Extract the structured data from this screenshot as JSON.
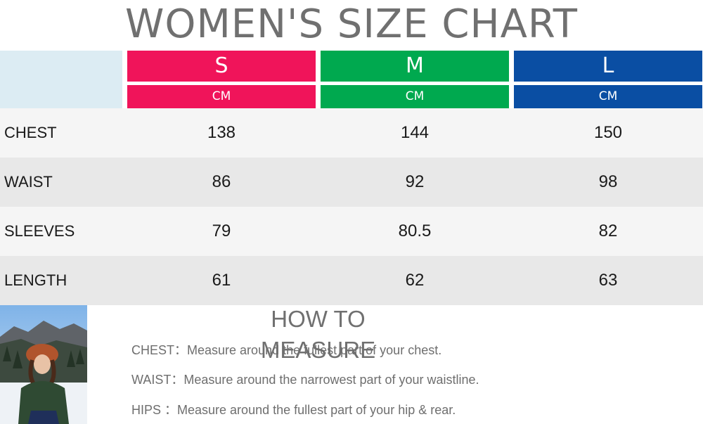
{
  "title": "WOMEN'S SIZE CHART",
  "colors": {
    "s": "#f0145a",
    "m": "#00a94f",
    "l": "#0a4ea3",
    "row_light": "#f5f5f5",
    "row_dark": "#e8e8e8"
  },
  "sizes": [
    {
      "label": "S",
      "unit": "CM"
    },
    {
      "label": "M",
      "unit": "CM"
    },
    {
      "label": "L",
      "unit": "CM"
    }
  ],
  "rows": [
    {
      "label": "CHEST",
      "values": [
        "138",
        "144",
        "150"
      ]
    },
    {
      "label": "WAIST",
      "values": [
        "86",
        "92",
        "98"
      ]
    },
    {
      "label": "SLEEVES",
      "values": [
        "79",
        "80.5",
        "82"
      ]
    },
    {
      "label": "LENGTH",
      "values": [
        "61",
        "62",
        "63"
      ]
    }
  ],
  "how_to_measure": {
    "title": "HOW TO MEASURE",
    "items": [
      {
        "key": "CHEST：",
        "text": "Measure around the fullest part of your chest."
      },
      {
        "key": "WAIST：",
        "text": "Measure around the narrowest part of your waistline."
      },
      {
        "key": "HIPS ：",
        "text": "Measure around the fullest part of your hip & rear."
      }
    ]
  }
}
